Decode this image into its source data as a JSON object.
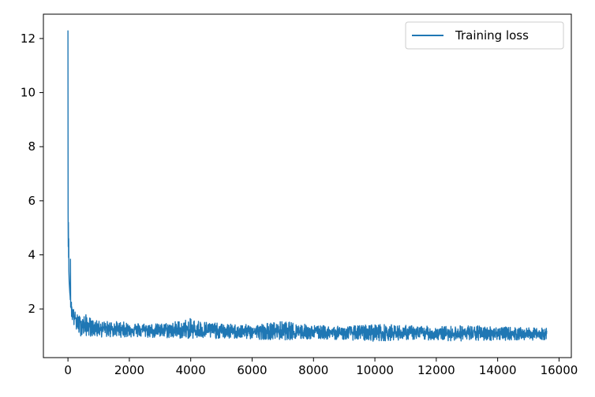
{
  "chart_data": {
    "type": "line",
    "title": "",
    "xlabel": "",
    "ylabel": "",
    "xlim": [
      -800,
      16400
    ],
    "ylim": [
      0.2,
      12.9
    ],
    "x_ticks": [
      0,
      2000,
      4000,
      6000,
      8000,
      10000,
      12000,
      14000,
      16000
    ],
    "x_tick_labels": [
      "0",
      "2000",
      "4000",
      "6000",
      "8000",
      "10000",
      "12000",
      "14000",
      "16000"
    ],
    "y_ticks": [
      2,
      4,
      6,
      8,
      10,
      12
    ],
    "y_tick_labels": [
      "2",
      "4",
      "6",
      "8",
      "10",
      "12"
    ],
    "grid": false,
    "legend": {
      "placement": "top-right",
      "entries": [
        "Training loss"
      ]
    },
    "series": [
      {
        "name": "Training loss",
        "color": "#1f77b4",
        "x": [
          0,
          5,
          10,
          15,
          20,
          25,
          30,
          40,
          50,
          60,
          80,
          100,
          130,
          160,
          200,
          250,
          300,
          400,
          500,
          600,
          800,
          1000,
          1200,
          1500,
          1800,
          2000,
          2500,
          3000,
          3500,
          4000,
          4500,
          5000,
          5500,
          6000,
          6500,
          7000,
          7500,
          8000,
          8500,
          9000,
          9500,
          10000,
          10500,
          11000,
          11500,
          12000,
          12500,
          13000,
          13500,
          14000,
          14500,
          15000,
          15600
        ],
        "y": [
          12.3,
          5.5,
          4.3,
          5.2,
          3.9,
          4.6,
          3.4,
          3.0,
          2.8,
          2.6,
          2.3,
          2.1,
          1.95,
          1.85,
          1.75,
          1.65,
          1.55,
          1.45,
          1.4,
          1.38,
          1.35,
          1.32,
          1.3,
          1.28,
          1.27,
          1.26,
          1.24,
          1.22,
          1.21,
          1.2,
          1.19,
          1.18,
          1.17,
          1.16,
          1.16,
          1.15,
          1.14,
          1.14,
          1.13,
          1.13,
          1.12,
          1.12,
          1.11,
          1.11,
          1.1,
          1.1,
          1.1,
          1.09,
          1.09,
          1.09,
          1.08,
          1.08,
          1.08
        ]
      }
    ],
    "noise_band": {
      "x": [
        0,
        100,
        200,
        300,
        400,
        600,
        800,
        1000,
        1500,
        2000,
        3000,
        4000,
        5000,
        6000,
        7000,
        8000,
        9000,
        10000,
        11000,
        12000,
        13000,
        14000,
        15000,
        15600
      ],
      "y_high": [
        12.3,
        2.4,
        1.95,
        1.8,
        1.75,
        1.8,
        1.6,
        1.55,
        1.55,
        1.5,
        1.45,
        1.65,
        1.45,
        1.42,
        1.55,
        1.4,
        1.35,
        1.45,
        1.4,
        1.35,
        1.4,
        1.35,
        1.3,
        1.3
      ],
      "y_low": [
        4.3,
        1.7,
        1.3,
        1.1,
        1.0,
        1.0,
        0.98,
        0.95,
        0.95,
        0.95,
        0.92,
        0.9,
        0.9,
        0.88,
        0.85,
        0.88,
        0.86,
        0.8,
        0.86,
        0.84,
        0.8,
        0.84,
        0.84,
        0.86
      ]
    }
  }
}
